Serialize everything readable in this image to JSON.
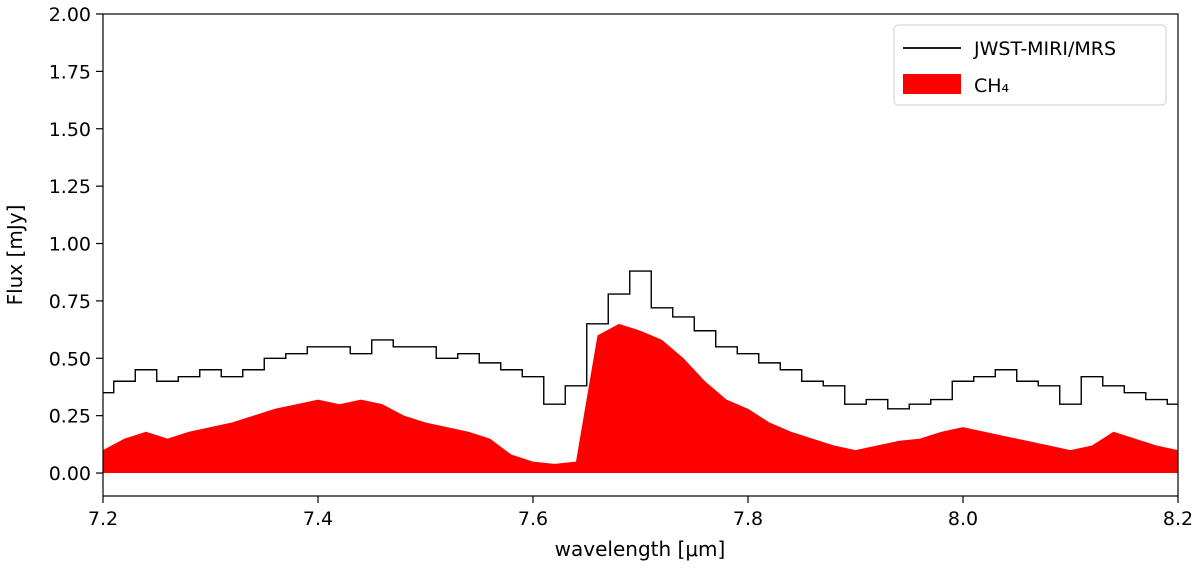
{
  "chart_data": {
    "type": "line",
    "xlabel": "wavelength [μm]",
    "ylabel": "Flux [mJy]",
    "xlim": [
      7.2,
      8.2
    ],
    "ylim": [
      -0.1,
      2.0
    ],
    "xticks": [
      "7.2",
      "7.4",
      "7.6",
      "7.8",
      "8.0",
      "8.2"
    ],
    "yticks": [
      "0.00",
      "0.25",
      "0.50",
      "0.75",
      "1.00",
      "1.25",
      "1.50",
      "1.75",
      "2.00"
    ],
    "grid": false,
    "legend_position": "top-right",
    "colors": {
      "observed": "#000000",
      "model": "#ff0000"
    },
    "series": [
      {
        "name": "JWST-MIRI/MRS",
        "style": "step-line",
        "x": [
          7.2,
          7.22,
          7.24,
          7.26,
          7.28,
          7.3,
          7.32,
          7.34,
          7.36,
          7.38,
          7.4,
          7.42,
          7.44,
          7.46,
          7.48,
          7.5,
          7.52,
          7.54,
          7.56,
          7.58,
          7.6,
          7.62,
          7.64,
          7.66,
          7.68,
          7.7,
          7.72,
          7.74,
          7.76,
          7.78,
          7.8,
          7.82,
          7.84,
          7.86,
          7.88,
          7.9,
          7.92,
          7.94,
          7.96,
          7.98,
          8.0,
          8.02,
          8.04,
          8.06,
          8.08,
          8.1,
          8.12,
          8.14,
          8.16,
          8.18,
          8.2
        ],
        "y": [
          0.35,
          0.4,
          0.45,
          0.4,
          0.42,
          0.45,
          0.42,
          0.45,
          0.5,
          0.52,
          0.55,
          0.55,
          0.52,
          0.58,
          0.55,
          0.55,
          0.5,
          0.52,
          0.48,
          0.45,
          0.42,
          0.3,
          0.38,
          0.65,
          0.78,
          0.88,
          0.72,
          0.68,
          0.62,
          0.55,
          0.52,
          0.48,
          0.45,
          0.4,
          0.38,
          0.3,
          0.32,
          0.28,
          0.3,
          0.32,
          0.4,
          0.42,
          0.45,
          0.4,
          0.38,
          0.3,
          0.42,
          0.38,
          0.35,
          0.32,
          0.3
        ]
      },
      {
        "name": "CH₄",
        "style": "filled-area",
        "x": [
          7.2,
          7.22,
          7.24,
          7.26,
          7.28,
          7.3,
          7.32,
          7.34,
          7.36,
          7.38,
          7.4,
          7.42,
          7.44,
          7.46,
          7.48,
          7.5,
          7.52,
          7.54,
          7.56,
          7.58,
          7.6,
          7.62,
          7.64,
          7.66,
          7.68,
          7.7,
          7.72,
          7.74,
          7.76,
          7.78,
          7.8,
          7.82,
          7.84,
          7.86,
          7.88,
          7.9,
          7.92,
          7.94,
          7.96,
          7.98,
          8.0,
          8.02,
          8.04,
          8.06,
          8.08,
          8.1,
          8.12,
          8.14,
          8.16,
          8.18,
          8.2
        ],
        "y": [
          0.1,
          0.15,
          0.18,
          0.15,
          0.18,
          0.2,
          0.22,
          0.25,
          0.28,
          0.3,
          0.32,
          0.3,
          0.32,
          0.3,
          0.25,
          0.22,
          0.2,
          0.18,
          0.15,
          0.08,
          0.05,
          0.04,
          0.05,
          0.6,
          0.65,
          0.62,
          0.58,
          0.5,
          0.4,
          0.32,
          0.28,
          0.22,
          0.18,
          0.15,
          0.12,
          0.1,
          0.12,
          0.14,
          0.15,
          0.18,
          0.2,
          0.18,
          0.16,
          0.14,
          0.12,
          0.1,
          0.12,
          0.18,
          0.15,
          0.12,
          0.1
        ]
      }
    ]
  }
}
